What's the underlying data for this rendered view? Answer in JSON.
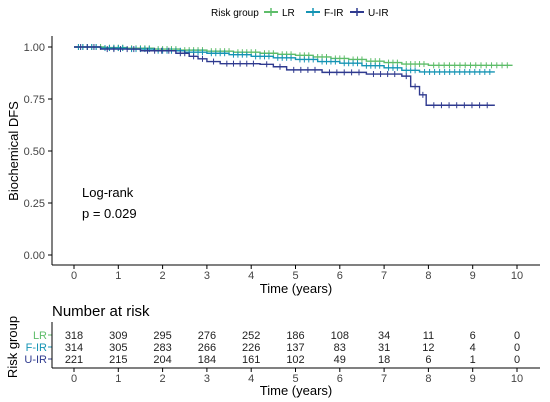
{
  "legend": {
    "title": "Risk group"
  },
  "colors": {
    "LR": "#5ebd6a",
    "F-IR": "#1594b4",
    "U-IR": "#2f3a8f",
    "axis": "#000000"
  },
  "annotation": {
    "test": "Log-rank",
    "pvalue": "p = 0.029"
  },
  "risk_table": {
    "title": "Number at risk",
    "ylabel": "Risk group",
    "xlabel": "Time (years)",
    "times": [
      0,
      1,
      2,
      3,
      4,
      5,
      6,
      7,
      8,
      9,
      10
    ],
    "rows": [
      {
        "group": "LR",
        "counts": [
          318,
          309,
          295,
          276,
          252,
          186,
          108,
          34,
          11,
          6,
          0
        ]
      },
      {
        "group": "F-IR",
        "counts": [
          314,
          305,
          283,
          266,
          226,
          137,
          83,
          31,
          12,
          4,
          0
        ]
      },
      {
        "group": "U-IR",
        "counts": [
          221,
          215,
          204,
          184,
          161,
          102,
          49,
          18,
          6,
          1,
          0
        ]
      }
    ]
  },
  "chart_data": {
    "type": "line",
    "title": "",
    "xlabel": "Time (years)",
    "ylabel": "Biochemical DFS",
    "xlim": [
      0,
      10
    ],
    "ylim": [
      0,
      1
    ],
    "xticks": [
      "0",
      "1",
      "2",
      "3",
      "4",
      "5",
      "6",
      "7",
      "8",
      "9",
      "10"
    ],
    "yticks": [
      "0.00",
      "0.25",
      "0.50",
      "0.75",
      "1.00"
    ],
    "legend_position": "top",
    "series": [
      {
        "name": "LR",
        "steps": [
          [
            0,
            1.0
          ],
          [
            0.7,
            0.997
          ],
          [
            1.2,
            0.994
          ],
          [
            1.8,
            0.99
          ],
          [
            2.4,
            0.985
          ],
          [
            3.0,
            0.98
          ],
          [
            3.6,
            0.975
          ],
          [
            4.2,
            0.97
          ],
          [
            4.6,
            0.965
          ],
          [
            5.0,
            0.96
          ],
          [
            5.4,
            0.952
          ],
          [
            5.8,
            0.945
          ],
          [
            6.2,
            0.94
          ],
          [
            6.6,
            0.932
          ],
          [
            7.0,
            0.925
          ],
          [
            7.4,
            0.918
          ],
          [
            8.0,
            0.912
          ]
        ],
        "end": 9.9
      },
      {
        "name": "F-IR",
        "steps": [
          [
            0,
            1.0
          ],
          [
            0.6,
            0.995
          ],
          [
            1.2,
            0.99
          ],
          [
            1.8,
            0.982
          ],
          [
            2.5,
            0.975
          ],
          [
            3.0,
            0.97
          ],
          [
            3.5,
            0.963
          ],
          [
            4.0,
            0.955
          ],
          [
            4.5,
            0.948
          ],
          [
            5.0,
            0.94
          ],
          [
            5.5,
            0.93
          ],
          [
            6.0,
            0.922
          ],
          [
            6.5,
            0.91
          ],
          [
            7.0,
            0.9
          ],
          [
            7.4,
            0.888
          ],
          [
            7.8,
            0.88
          ]
        ],
        "end": 9.5
      },
      {
        "name": "U-IR",
        "steps": [
          [
            0,
            1.0
          ],
          [
            0.6,
            0.99
          ],
          [
            1.5,
            0.982
          ],
          [
            2.3,
            0.97
          ],
          [
            2.6,
            0.955
          ],
          [
            2.8,
            0.943
          ],
          [
            3.0,
            0.93
          ],
          [
            3.3,
            0.92
          ],
          [
            4.2,
            0.917
          ],
          [
            4.5,
            0.905
          ],
          [
            4.8,
            0.89
          ],
          [
            5.6,
            0.878
          ],
          [
            6.6,
            0.87
          ],
          [
            7.4,
            0.86
          ],
          [
            7.6,
            0.81
          ],
          [
            7.8,
            0.77
          ],
          [
            7.95,
            0.72
          ]
        ],
        "end": 9.5
      }
    ]
  }
}
